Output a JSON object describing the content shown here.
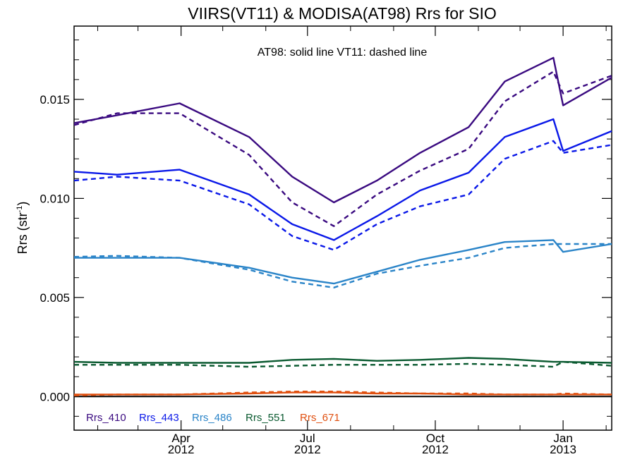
{
  "chart_data": {
    "type": "line",
    "title": "VIIRS(VT11) & MODISA(AT98)  Rrs for SIO",
    "annotation": "AT98: solid line   VT11: dashed line",
    "ylabel": "Rrs (str",
    "ylabel_sup": "-1",
    "ylabel_close": ")",
    "xlabel": "",
    "ylim": [
      -0.0017,
      0.0187
    ],
    "xlim": [
      "2012-01-15",
      "2013-02-05"
    ],
    "grid": false,
    "legend_position": "bottom-left",
    "y_ticks": [
      {
        "value": 0.0,
        "label": "0.000"
      },
      {
        "value": 0.005,
        "label": "0.005"
      },
      {
        "value": 0.01,
        "label": "0.010"
      },
      {
        "value": 0.015,
        "label": "0.015"
      }
    ],
    "x_ticks": [
      {
        "date": "2012-04-01",
        "month": "Apr",
        "year": "2012"
      },
      {
        "date": "2012-07-01",
        "month": "Jul",
        "year": "2012"
      },
      {
        "date": "2012-10-01",
        "month": "Oct",
        "year": "2012"
      },
      {
        "date": "2013-01-01",
        "month": "Jan",
        "year": "2013"
      }
    ],
    "zero_line": 0.0,
    "series": [
      {
        "name": "Rrs_410",
        "sensor": "AT98",
        "style": "solid",
        "color": "#3a0a80",
        "x": [
          "2012-01-15",
          "2012-02-15",
          "2012-03-31",
          "2012-05-20",
          "2012-06-20",
          "2012-07-20",
          "2012-08-20",
          "2012-09-20",
          "2012-10-25",
          "2012-11-20",
          "2012-12-25",
          "2013-01-01",
          "2013-02-05"
        ],
        "y": [
          0.0138,
          0.0142,
          0.0148,
          0.0131,
          0.0111,
          0.0098,
          0.0109,
          0.0123,
          0.0136,
          0.0159,
          0.0171,
          0.0147,
          0.0161
        ]
      },
      {
        "name": "Rrs_410",
        "sensor": "VT11",
        "style": "dashed",
        "color": "#3a0a80",
        "x": [
          "2012-01-15",
          "2012-02-15",
          "2012-03-31",
          "2012-05-20",
          "2012-06-20",
          "2012-07-20",
          "2012-08-20",
          "2012-09-20",
          "2012-10-25",
          "2012-11-20",
          "2012-12-25",
          "2013-01-01",
          "2013-02-05"
        ],
        "y": [
          0.0137,
          0.0143,
          0.0143,
          0.0122,
          0.0098,
          0.0086,
          0.0102,
          0.0114,
          0.0125,
          0.0149,
          0.0164,
          0.0153,
          0.0162
        ]
      },
      {
        "name": "Rrs_443",
        "sensor": "AT98",
        "style": "solid",
        "color": "#0a18e8",
        "x": [
          "2012-01-15",
          "2012-02-15",
          "2012-03-31",
          "2012-05-20",
          "2012-06-20",
          "2012-07-20",
          "2012-08-20",
          "2012-09-20",
          "2012-10-25",
          "2012-11-20",
          "2012-12-25",
          "2013-01-01",
          "2013-02-05"
        ],
        "y": [
          0.01135,
          0.0112,
          0.01145,
          0.0102,
          0.0087,
          0.0079,
          0.0091,
          0.0104,
          0.0113,
          0.0131,
          0.014,
          0.0124,
          0.0134
        ]
      },
      {
        "name": "Rrs_443",
        "sensor": "VT11",
        "style": "dashed",
        "color": "#0a18e8",
        "x": [
          "2012-01-15",
          "2012-02-15",
          "2012-03-31",
          "2012-05-20",
          "2012-06-20",
          "2012-07-20",
          "2012-08-20",
          "2012-09-20",
          "2012-10-25",
          "2012-11-20",
          "2012-12-25",
          "2013-01-01",
          "2013-02-05"
        ],
        "y": [
          0.0109,
          0.0111,
          0.0109,
          0.0097,
          0.0081,
          0.0074,
          0.0087,
          0.0096,
          0.0102,
          0.012,
          0.0129,
          0.0123,
          0.0127
        ]
      },
      {
        "name": "Rrs_486",
        "sensor": "AT98",
        "style": "solid",
        "color": "#2a84c8",
        "x": [
          "2012-01-15",
          "2012-02-15",
          "2012-03-31",
          "2012-05-20",
          "2012-06-20",
          "2012-07-20",
          "2012-08-20",
          "2012-09-20",
          "2012-10-25",
          "2012-11-20",
          "2012-12-25",
          "2013-01-01",
          "2013-02-05"
        ],
        "y": [
          0.007,
          0.007,
          0.007,
          0.0065,
          0.006,
          0.0057,
          0.0063,
          0.0069,
          0.0074,
          0.0078,
          0.0079,
          0.0073,
          0.0077
        ]
      },
      {
        "name": "Rrs_486",
        "sensor": "VT11",
        "style": "dashed",
        "color": "#2a84c8",
        "x": [
          "2012-01-15",
          "2012-02-15",
          "2012-03-31",
          "2012-05-20",
          "2012-06-20",
          "2012-07-20",
          "2012-08-20",
          "2012-09-20",
          "2012-10-25",
          "2012-11-20",
          "2012-12-25",
          "2013-01-01",
          "2013-02-05"
        ],
        "y": [
          0.00705,
          0.0071,
          0.007,
          0.0064,
          0.0058,
          0.0055,
          0.0062,
          0.0066,
          0.007,
          0.0075,
          0.0077,
          0.0077,
          0.0077
        ]
      },
      {
        "name": "Rrs_551",
        "sensor": "AT98",
        "style": "solid",
        "color": "#0a5a30",
        "x": [
          "2012-01-15",
          "2012-02-15",
          "2012-03-31",
          "2012-05-20",
          "2012-06-20",
          "2012-07-20",
          "2012-08-20",
          "2012-09-20",
          "2012-10-25",
          "2012-11-20",
          "2012-12-25",
          "2013-01-01",
          "2013-02-05"
        ],
        "y": [
          0.00175,
          0.0017,
          0.0017,
          0.0017,
          0.00185,
          0.0019,
          0.0018,
          0.00185,
          0.00195,
          0.0019,
          0.00175,
          0.00175,
          0.0017
        ]
      },
      {
        "name": "Rrs_551",
        "sensor": "VT11",
        "style": "dashed",
        "color": "#0a5a30",
        "x": [
          "2012-01-15",
          "2012-02-15",
          "2012-03-31",
          "2012-05-20",
          "2012-06-20",
          "2012-07-20",
          "2012-08-20",
          "2012-09-20",
          "2012-10-25",
          "2012-11-20",
          "2012-12-25",
          "2013-01-01",
          "2013-02-05"
        ],
        "y": [
          0.0016,
          0.0016,
          0.0016,
          0.0015,
          0.00155,
          0.0016,
          0.0016,
          0.0016,
          0.00165,
          0.0016,
          0.0015,
          0.00175,
          0.00155
        ]
      },
      {
        "name": "Rrs_671",
        "sensor": "AT98",
        "style": "solid",
        "color": "#e05010",
        "x": [
          "2012-01-15",
          "2012-02-15",
          "2012-03-31",
          "2012-05-20",
          "2012-06-20",
          "2012-07-20",
          "2012-08-20",
          "2012-09-20",
          "2012-10-25",
          "2012-11-20",
          "2012-12-25",
          "2013-01-01",
          "2013-02-05"
        ],
        "y": [
          0.0001,
          0.0001,
          0.0001,
          0.00015,
          0.0002,
          0.0002,
          0.00015,
          0.00015,
          0.0001,
          0.0001,
          0.0001,
          0.0001,
          0.0001
        ]
      },
      {
        "name": "Rrs_671",
        "sensor": "VT11",
        "style": "dashed",
        "color": "#e05010",
        "x": [
          "2012-01-15",
          "2012-02-15",
          "2012-03-31",
          "2012-05-20",
          "2012-06-20",
          "2012-07-20",
          "2012-08-20",
          "2012-09-20",
          "2012-10-25",
          "2012-11-20",
          "2012-12-25",
          "2013-01-01",
          "2013-02-05"
        ],
        "y": [
          5e-05,
          0.0001,
          0.0001,
          0.0002,
          0.00025,
          0.00025,
          0.0002,
          0.00015,
          0.00015,
          0.0001,
          0.0001,
          0.00015,
          0.0001
        ]
      }
    ],
    "legend": [
      {
        "label": "Rrs_410",
        "color": "#3a0a80"
      },
      {
        "label": "Rrs_443",
        "color": "#0a18e8"
      },
      {
        "label": "Rrs_486",
        "color": "#2a84c8"
      },
      {
        "label": "Rrs_551",
        "color": "#0a5a30"
      },
      {
        "label": "Rrs_671",
        "color": "#e05010"
      }
    ]
  }
}
